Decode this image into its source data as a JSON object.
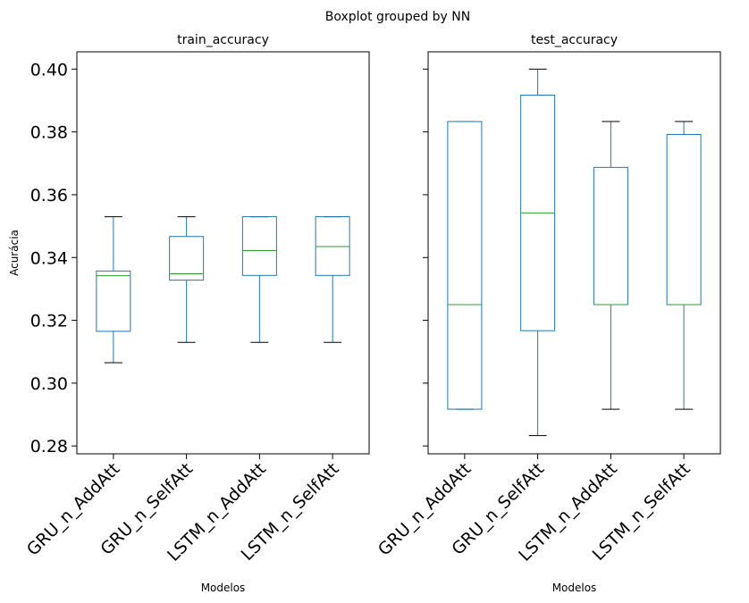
{
  "suptitle": "Boxplot grouped by NN",
  "colors": {
    "box": "#1f77b4",
    "median": "#2ca02c",
    "whisker": "#1f77b4",
    "cap": "#000000",
    "axes": "#000000"
  },
  "chart_data": [
    {
      "type": "boxplot",
      "title": "train_accuracy",
      "xlabel": "Modelos",
      "ylabel": "Acurácia",
      "ylim": [
        0.2775,
        0.4055
      ],
      "yticks": [
        "0.28",
        "0.30",
        "0.32",
        "0.34",
        "0.36",
        "0.38",
        "0.40"
      ],
      "categories": [
        "GRU_n_AddAtt",
        "GRU_n_SelfAtt",
        "LSTM_n_AddAtt",
        "LSTM_n_SelfAtt"
      ],
      "boxes": [
        {
          "whislo": 0.3065,
          "q1": 0.3165,
          "med": 0.3342,
          "q3": 0.3357,
          "whishi": 0.353
        },
        {
          "whislo": 0.313,
          "q1": 0.3328,
          "med": 0.3348,
          "q3": 0.3467,
          "whishi": 0.353
        },
        {
          "whislo": 0.313,
          "q1": 0.3343,
          "med": 0.3422,
          "q3": 0.353,
          "whishi": 0.353
        },
        {
          "whislo": 0.313,
          "q1": 0.3343,
          "med": 0.3435,
          "q3": 0.353,
          "whishi": 0.353
        }
      ]
    },
    {
      "type": "boxplot",
      "title": "test_accuracy",
      "xlabel": "Modelos",
      "ylabel": "",
      "ylim": [
        0.2775,
        0.4055
      ],
      "yticks": [
        "0.28",
        "0.30",
        "0.32",
        "0.34",
        "0.36",
        "0.38",
        "0.40"
      ],
      "categories": [
        "GRU_n_AddAtt",
        "GRU_n_SelfAtt",
        "LSTM_n_AddAtt",
        "LSTM_n_SelfAtt"
      ],
      "boxes": [
        {
          "whislo": 0.2917,
          "q1": 0.2917,
          "med": 0.325,
          "q3": 0.3833,
          "whishi": 0.3833
        },
        {
          "whislo": 0.2833,
          "q1": 0.3167,
          "med": 0.3542,
          "q3": 0.3917,
          "whishi": 0.4
        },
        {
          "whislo": 0.2917,
          "q1": 0.325,
          "med": 0.325,
          "q3": 0.3687,
          "whishi": 0.3833
        },
        {
          "whislo": 0.2917,
          "q1": 0.325,
          "med": 0.325,
          "q3": 0.3792,
          "whishi": 0.3833
        }
      ]
    }
  ]
}
